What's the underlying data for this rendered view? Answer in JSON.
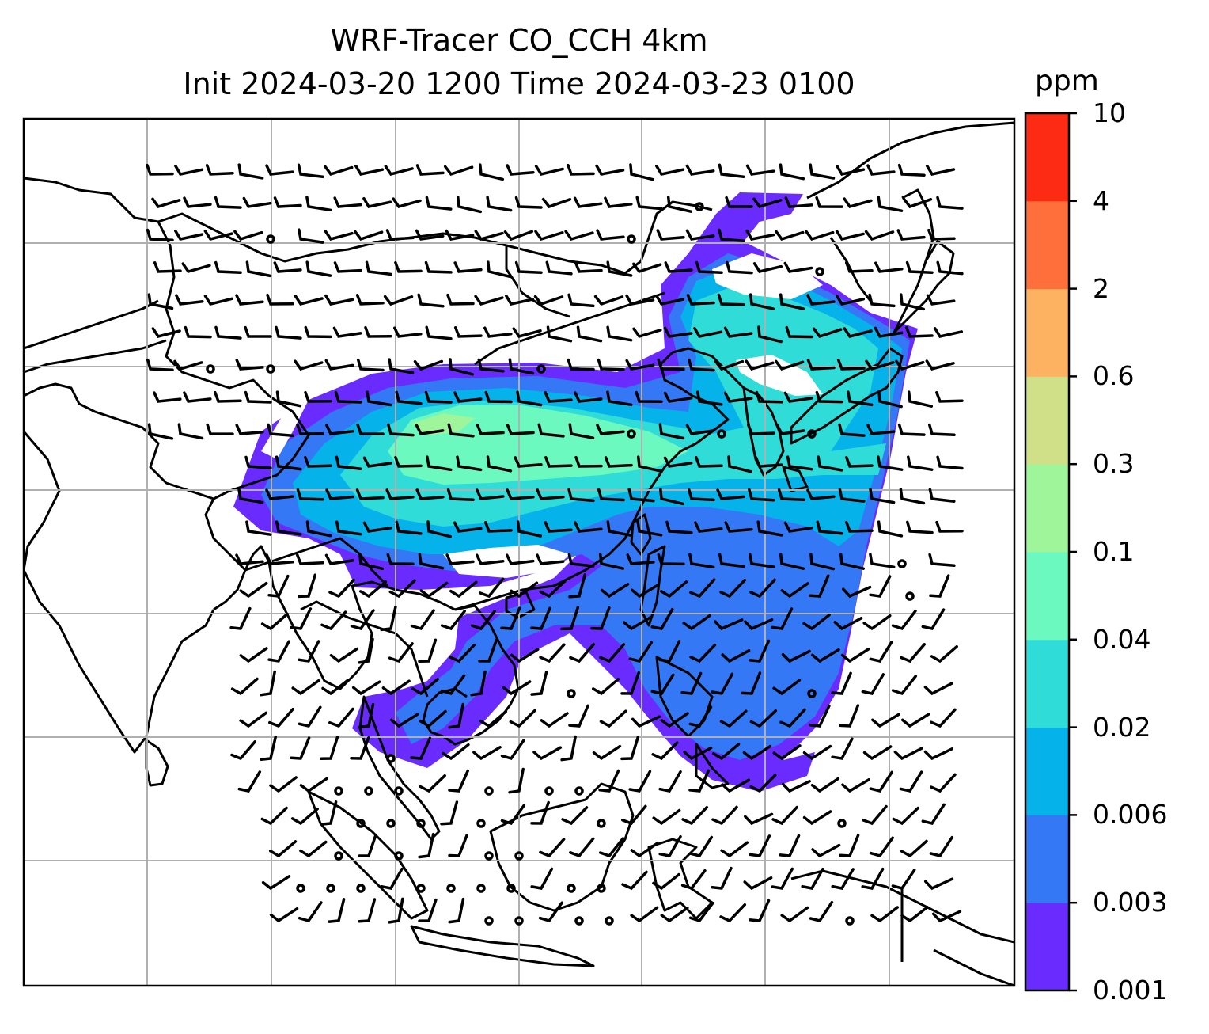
{
  "title": {
    "line1": "WRF-Tracer CO_CCH 4km",
    "line2": "Init 2024-03-20 1200 Time 2024-03-23 0100"
  },
  "colorbar": {
    "unit": "ppm",
    "ticks": [
      "0.001",
      "0.003",
      "0.006",
      "0.02",
      "0.04",
      "0.1",
      "0.3",
      "0.6",
      "2",
      "4",
      "10"
    ],
    "colors": [
      "#6a2bff",
      "#3478f6",
      "#06b2ea",
      "#2fdcd8",
      "#6bf9c0",
      "#9ff59a",
      "#cfe088",
      "#fdb262",
      "#fe6f3b",
      "#fd2a14"
    ]
  },
  "map": {
    "gridlines": true,
    "features": [
      "coastlines",
      "country-borders",
      "wind-barbs",
      "tracer-concentration-contours"
    ]
  }
}
